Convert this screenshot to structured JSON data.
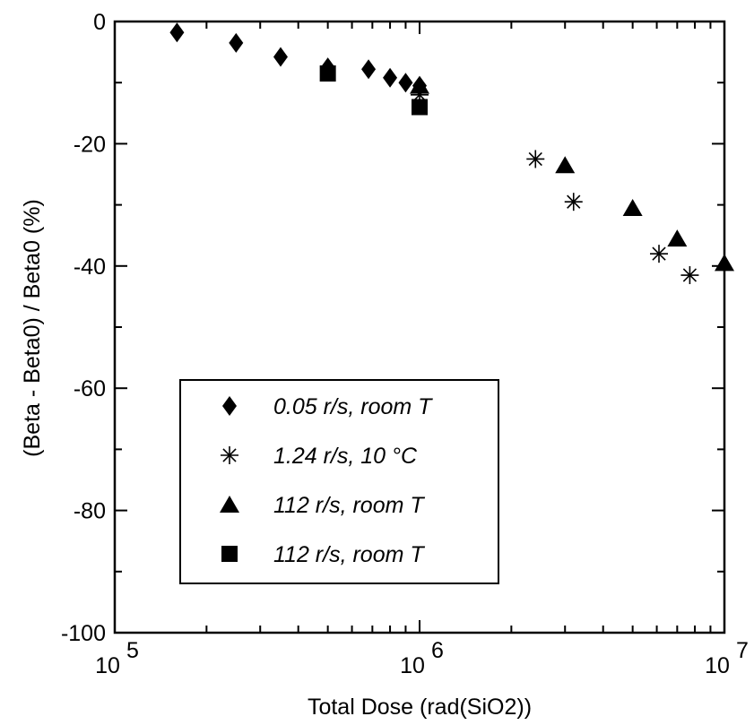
{
  "chart_data": {
    "type": "scatter",
    "title": "",
    "xlabel": "Total Dose (rad(SiO2))",
    "ylabel": "(Beta - Beta0) / Beta0 (%)",
    "x_scale": "log",
    "xlim": [
      100000,
      10000000
    ],
    "ylim": [
      -100,
      0
    ],
    "x_ticks": [
      {
        "base": "10",
        "exp": "5",
        "value": 100000
      },
      {
        "base": "10",
        "exp": "6",
        "value": 1000000
      },
      {
        "base": "10",
        "exp": "7",
        "value": 10000000
      }
    ],
    "y_ticks": [
      "0",
      "-20",
      "-40",
      "-60",
      "-80",
      "-100"
    ],
    "grid": false,
    "legend_position": "lower-left",
    "series": [
      {
        "name": "0.05 r/s, room T",
        "marker": "diamond",
        "points": [
          {
            "x": 160000,
            "y": -1.8
          },
          {
            "x": 250000,
            "y": -3.5
          },
          {
            "x": 350000,
            "y": -5.8
          },
          {
            "x": 500000,
            "y": -7.5
          },
          {
            "x": 680000,
            "y": -7.8
          },
          {
            "x": 800000,
            "y": -9.2
          },
          {
            "x": 900000,
            "y": -10.0
          },
          {
            "x": 1000000,
            "y": -10.5
          }
        ]
      },
      {
        "name": "1.24 r/s, 10 °C",
        "marker": "asterisk",
        "points": [
          {
            "x": 1000000,
            "y": -12.0
          },
          {
            "x": 2400000,
            "y": -22.5
          },
          {
            "x": 3200000,
            "y": -29.5
          },
          {
            "x": 6100000,
            "y": -38.0
          },
          {
            "x": 7700000,
            "y": -41.5
          }
        ]
      },
      {
        "name": "112 r/s, room T",
        "marker": "triangle",
        "points": [
          {
            "x": 1000000,
            "y": -10.5
          },
          {
            "x": 3000000,
            "y": -23.5
          },
          {
            "x": 5000000,
            "y": -30.5
          },
          {
            "x": 7000000,
            "y": -35.5
          },
          {
            "x": 10000000,
            "y": -39.5
          }
        ]
      },
      {
        "name": "112 r/s, room T",
        "marker": "square",
        "points": [
          {
            "x": 500000,
            "y": -8.5
          },
          {
            "x": 1000000,
            "y": -14.0
          }
        ]
      }
    ]
  }
}
